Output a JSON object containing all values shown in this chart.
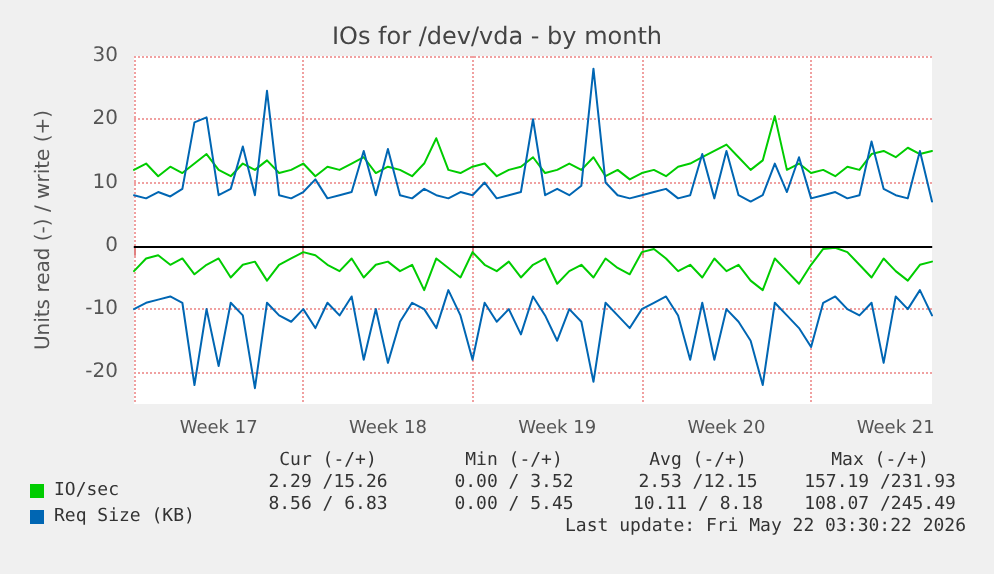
{
  "chart_data": {
    "type": "line",
    "title": "IOs for /dev/vda - by month",
    "ylabel": "Units read (-) / write (+)",
    "categories": [
      null,
      null,
      null,
      null,
      null,
      null,
      null,
      "Week 17",
      null,
      null,
      null,
      null,
      null,
      null,
      null,
      null,
      null,
      null,
      null,
      null,
      null,
      "Week 18",
      null,
      null,
      null,
      null,
      null,
      null,
      null,
      null,
      null,
      null,
      null,
      null,
      null,
      "Week 19",
      null,
      null,
      null,
      null,
      null,
      null,
      null,
      null,
      null,
      null,
      null,
      null,
      null,
      "Week 20",
      null,
      null,
      null,
      null,
      null,
      null,
      null,
      null,
      null,
      null,
      null,
      null,
      null,
      "Week 21",
      null,
      null,
      null
    ],
    "ylim": [
      -25,
      30
    ],
    "yticks": [
      -20,
      -10,
      0,
      10,
      20,
      30
    ],
    "grid": true,
    "legend": "bottom left",
    "marker": "none",
    "line_style": "solid",
    "ref_lines": [
      {
        "axis": "y",
        "value": 0,
        "color": "#000000"
      }
    ],
    "series": [
      {
        "name": "IO/sec",
        "color": "#00cc00",
        "values": [
          12,
          13,
          11,
          12.5,
          11.5,
          13,
          14.5,
          12,
          11,
          13,
          12,
          13.5,
          11.5,
          12,
          13,
          11,
          12.5,
          12,
          13,
          14,
          11.5,
          12.5,
          12,
          11,
          13,
          17,
          12,
          11.5,
          12.5,
          13,
          11,
          12,
          12.5,
          14,
          11.5,
          12,
          13,
          12,
          14,
          11,
          12,
          10.5,
          11.5,
          12,
          11,
          12.5,
          13,
          14,
          15,
          16,
          14,
          12,
          13.5,
          20.5,
          12,
          13,
          11.5,
          12,
          11,
          12.5,
          12,
          14.5,
          15,
          14,
          15.5,
          14.5,
          15
        ]
      },
      {
        "color": "#00cc00",
        "values": [
          -4,
          -2,
          -1.5,
          -3,
          -2,
          -4.5,
          -3,
          -2,
          -5,
          -3,
          -2.5,
          -5.5,
          -3,
          -2,
          -1,
          -1.5,
          -3,
          -4,
          -2,
          -5,
          -3,
          -2.5,
          -4,
          -3,
          -7,
          -2,
          -3.5,
          -5,
          -1,
          -3,
          -4,
          -2.5,
          -5,
          -3,
          -2,
          -6,
          -4,
          -3,
          -5,
          -2,
          -3.5,
          -4.5,
          -1,
          -0.5,
          -2,
          -4,
          -3,
          -5,
          -2,
          -4,
          -3,
          -5.5,
          -7,
          -2,
          -4,
          -6,
          -3,
          -0.5,
          -0.3,
          -1,
          -3,
          -5,
          -2,
          -4,
          -5.5,
          -3,
          -2.5
        ]
      },
      {
        "name": "Req Size (KB)",
        "color": "#0066b3",
        "values": [
          8,
          7.5,
          8.5,
          7.8,
          9,
          19.5,
          20.3,
          8,
          9,
          15.7,
          8,
          24.5,
          8,
          7.5,
          8.5,
          10.5,
          7.5,
          8,
          8.5,
          15,
          8,
          15.3,
          8,
          7.5,
          9,
          8,
          7.5,
          8.5,
          8,
          10,
          7.5,
          8,
          8.5,
          20,
          8,
          9,
          8,
          9.5,
          28,
          10,
          8,
          7.5,
          8,
          8.5,
          9,
          7.5,
          8,
          14.5,
          7.5,
          15,
          8,
          7,
          8,
          13,
          8.5,
          14,
          7.5,
          8,
          8.5,
          7.5,
          8,
          16.5,
          9,
          8,
          7.5,
          15,
          7
        ]
      },
      {
        "color": "#0066b3",
        "values": [
          -10,
          -9,
          -8.5,
          -8,
          -9,
          -22,
          -10,
          -19,
          -9,
          -11,
          -22.5,
          -9,
          -11,
          -12,
          -10,
          -13,
          -9,
          -11,
          -8,
          -18,
          -10,
          -18.5,
          -12,
          -9,
          -10,
          -13,
          -7,
          -11,
          -18,
          -9,
          -12,
          -10,
          -14,
          -8,
          -11,
          -15,
          -10,
          -12,
          -21.5,
          -9,
          -11,
          -13,
          -10,
          -9,
          -8,
          -11,
          -18,
          -9,
          -18,
          -10,
          -12,
          -15,
          -22,
          -9,
          -11,
          -13,
          -16,
          -9,
          -8,
          -10,
          -11,
          -9,
          -18.5,
          -8,
          -10,
          -7,
          -11
        ]
      }
    ],
    "annotations": [
      "Cur (-/+)",
      "Min (-/+)",
      "Avg (-/+)",
      "Max (-/+)",
      "2.29 /15.26",
      "0.00 / 3.52",
      "2.53 /12.15",
      "157.19 /231.93",
      "8.56 / 6.83",
      "0.00 / 5.45",
      "10.11 / 8.18",
      "108.07 /245.49",
      "Last update: Fri May 22 03:30:22 2026"
    ]
  }
}
